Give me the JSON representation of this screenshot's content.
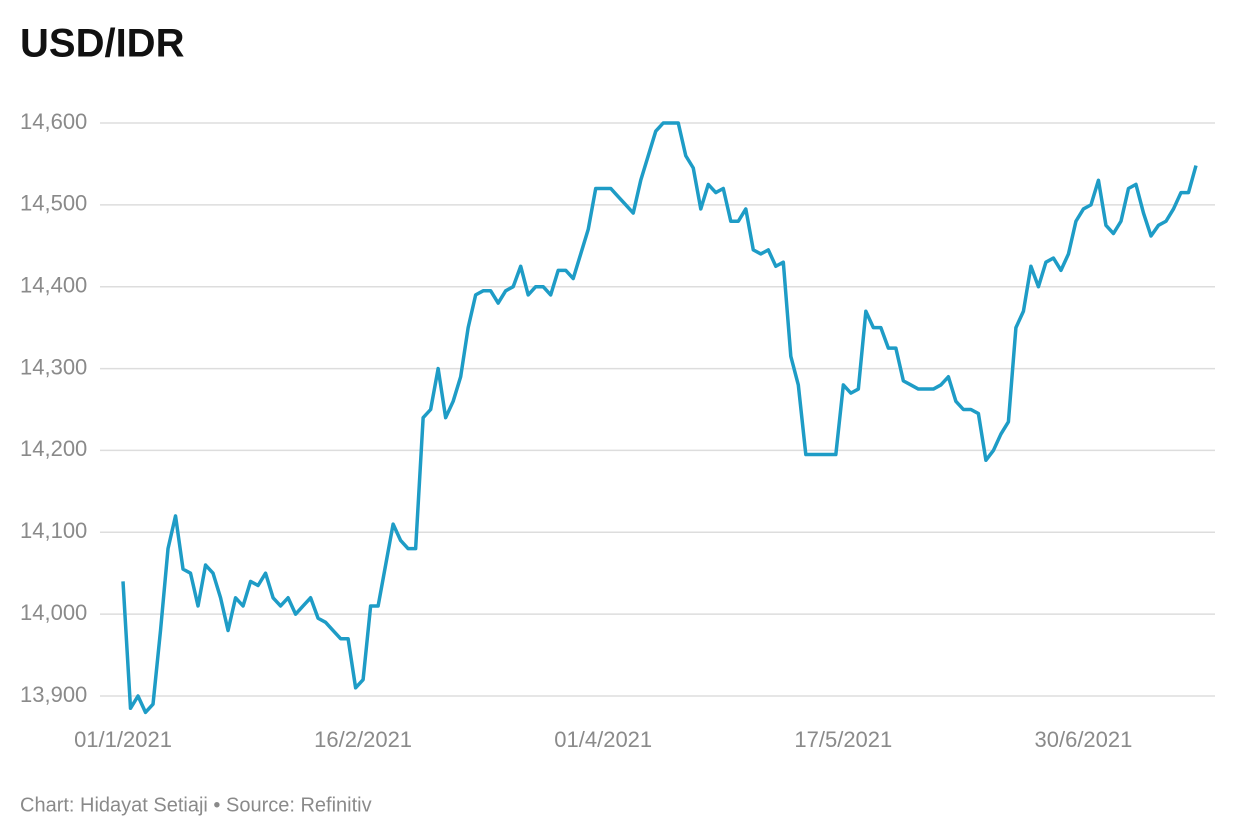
{
  "chart_data": {
    "type": "line",
    "title": "USD/IDR",
    "credit": "Chart: Hidayat Setiaji • Source: Refinitiv",
    "categories": [
      "01/1/2021",
      null,
      null,
      null,
      null,
      null,
      null,
      null,
      null,
      null,
      null,
      null,
      null,
      null,
      null,
      null,
      null,
      null,
      null,
      null,
      null,
      null,
      null,
      null,
      null,
      null,
      null,
      null,
      null,
      null,
      null,
      null,
      "16/2/2021",
      null,
      null,
      null,
      null,
      null,
      null,
      null,
      null,
      null,
      null,
      null,
      null,
      null,
      null,
      null,
      null,
      null,
      null,
      null,
      null,
      null,
      null,
      null,
      null,
      null,
      null,
      null,
      null,
      null,
      null,
      null,
      "01/4/2021",
      null,
      null,
      null,
      null,
      null,
      null,
      null,
      null,
      null,
      null,
      null,
      null,
      null,
      null,
      null,
      null,
      null,
      null,
      null,
      null,
      null,
      null,
      null,
      null,
      null,
      null,
      null,
      null,
      null,
      null,
      null,
      "17/5/2021",
      null,
      null,
      null,
      null,
      null,
      null,
      null,
      null,
      null,
      null,
      null,
      null,
      null,
      null,
      null,
      null,
      null,
      null,
      null,
      null,
      null,
      null,
      null,
      null,
      null,
      null,
      null,
      null,
      null,
      null,
      null,
      "30/6/2021",
      null,
      null,
      null,
      null,
      null,
      null,
      null,
      null,
      null,
      null,
      null,
      null,
      null,
      null,
      null
    ],
    "series": [
      {
        "name": "USD/IDR",
        "color": "#1e9cc6",
        "values": [
          14040,
          13885,
          13900,
          13880,
          13890,
          13980,
          14080,
          14120,
          14055,
          14050,
          14010,
          14060,
          14050,
          14020,
          13980,
          14020,
          14010,
          14040,
          14035,
          14050,
          14020,
          14010,
          14020,
          14000,
          14010,
          14020,
          13995,
          13990,
          13980,
          13970,
          13970,
          13910,
          13920,
          14010,
          14010,
          14060,
          14110,
          14090,
          14080,
          14080,
          14240,
          14250,
          14300,
          14240,
          14260,
          14290,
          14350,
          14390,
          14395,
          14395,
          14380,
          14395,
          14400,
          14425,
          14390,
          14400,
          14400,
          14390,
          14420,
          14420,
          14410,
          14440,
          14470,
          14520,
          14520,
          14520,
          14510,
          14500,
          14490,
          14530,
          14560,
          14590,
          14600,
          14600,
          14600,
          14560,
          14545,
          14495,
          14525,
          14515,
          14520,
          14480,
          14480,
          14495,
          14445,
          14440,
          14445,
          14425,
          14430,
          14315,
          14280,
          14195,
          14195,
          14195,
          14195,
          14195,
          14280,
          14270,
          14275,
          14370,
          14350,
          14350,
          14325,
          14325,
          14285,
          14280,
          14275,
          14275,
          14275,
          14280,
          14290,
          14260,
          14250,
          14250,
          14245,
          14188,
          14200,
          14220,
          14235,
          14350,
          14370,
          14425,
          14400,
          14430,
          14435,
          14420,
          14440,
          14480,
          14495,
          14500,
          14530,
          14475,
          14465,
          14480,
          14520,
          14525,
          14490,
          14462,
          14475,
          14480,
          14495,
          14515,
          14515,
          14548
        ]
      }
    ],
    "ylim": [
      13900,
      14600
    ],
    "yticks": [
      {
        "value": 13900,
        "label": "13,900"
      },
      {
        "value": 14000,
        "label": "14,000"
      },
      {
        "value": 14100,
        "label": "14,100"
      },
      {
        "value": 14200,
        "label": "14,200"
      },
      {
        "value": 14300,
        "label": "14,300"
      },
      {
        "value": 14400,
        "label": "14,400"
      },
      {
        "value": 14500,
        "label": "14,500"
      },
      {
        "value": 14600,
        "label": "14,600"
      }
    ],
    "grid": true
  }
}
